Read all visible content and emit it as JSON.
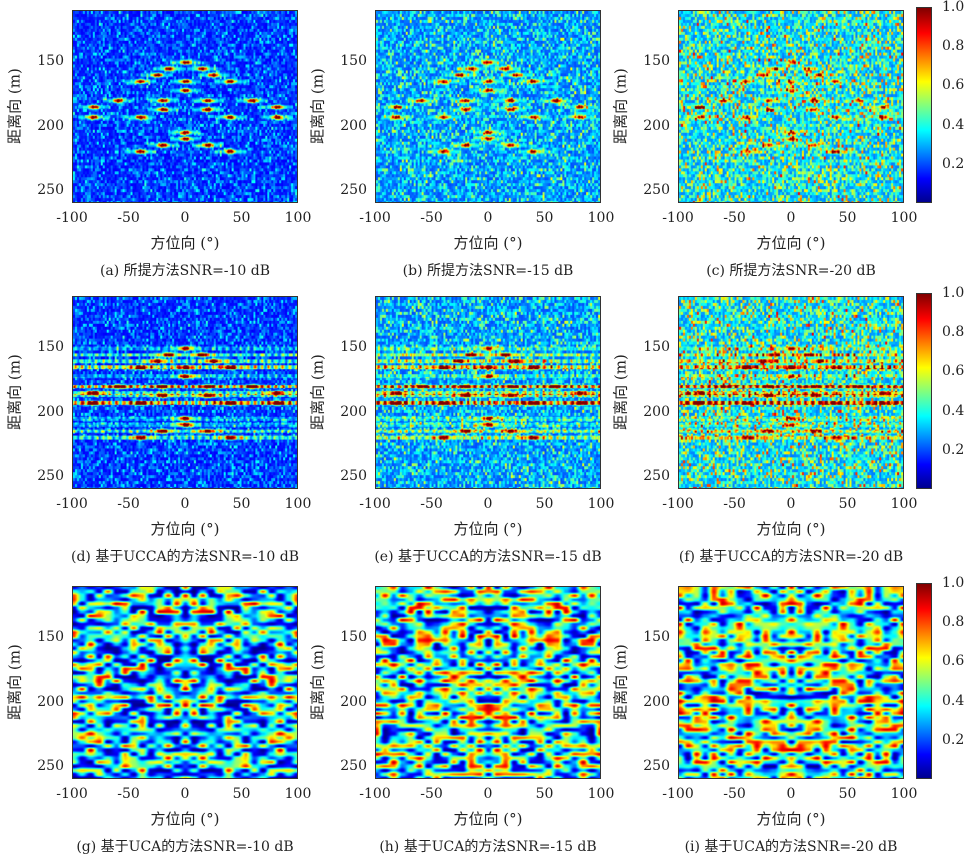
{
  "colors": {
    "colormap": "jet"
  },
  "chart_data": [
    {
      "id": "a",
      "type": "heatmap",
      "caption": "(a) 所提方法SNR=-10 dB",
      "method": "proposed",
      "snr_db": -10,
      "xlabel": "方位向 (°)",
      "ylabel": "距离向 (m)",
      "xlim": [
        -100,
        100
      ],
      "ylim": [
        110,
        260
      ],
      "xticks": [
        "-100",
        "-50",
        "0",
        "50",
        "100"
      ],
      "yticks": [
        "150",
        "200",
        "250"
      ],
      "colorbar": false
    },
    {
      "id": "b",
      "type": "heatmap",
      "caption": "(b) 所提方法SNR=-15 dB",
      "method": "proposed",
      "snr_db": -15,
      "xlabel": "方位向 (°)",
      "ylabel": "距离向 (m)",
      "xlim": [
        -100,
        100
      ],
      "ylim": [
        110,
        260
      ],
      "xticks": [
        "-100",
        "-50",
        "0",
        "50",
        "100"
      ],
      "yticks": [
        "150",
        "200",
        "250"
      ],
      "colorbar": false
    },
    {
      "id": "c",
      "type": "heatmap",
      "caption": "(c) 所提方法SNR=-20 dB",
      "method": "proposed",
      "snr_db": -20,
      "xlabel": "方位向 (°)",
      "ylabel": "距离向 (m)",
      "xlim": [
        -100,
        100
      ],
      "ylim": [
        110,
        260
      ],
      "xticks": [
        "-100",
        "-50",
        "0",
        "50",
        "100"
      ],
      "yticks": [
        "150",
        "200",
        "250"
      ],
      "colorbar": true
    },
    {
      "id": "d",
      "type": "heatmap",
      "caption": "(d) 基于UCCA的方法SNR=-10 dB",
      "method": "ucca",
      "snr_db": -10,
      "xlabel": "方位向 (°)",
      "ylabel": "距离向 (m)",
      "xlim": [
        -100,
        100
      ],
      "ylim": [
        110,
        260
      ],
      "xticks": [
        "-100",
        "-50",
        "0",
        "50",
        "100"
      ],
      "yticks": [
        "150",
        "200",
        "250"
      ],
      "colorbar": false
    },
    {
      "id": "e",
      "type": "heatmap",
      "caption": "(e) 基于UCCA的方法SNR=-15 dB",
      "method": "ucca",
      "snr_db": -15,
      "xlabel": "方位向 (°)",
      "ylabel": "距离向 (m)",
      "xlim": [
        -100,
        100
      ],
      "ylim": [
        110,
        260
      ],
      "xticks": [
        "-100",
        "-50",
        "0",
        "50",
        "100"
      ],
      "yticks": [
        "150",
        "200",
        "250"
      ],
      "colorbar": false
    },
    {
      "id": "f",
      "type": "heatmap",
      "caption": "(f) 基于UCCA的方法SNR=-20 dB",
      "method": "ucca",
      "snr_db": -20,
      "xlabel": "方位向 (°)",
      "ylabel": "距离向 (m)",
      "xlim": [
        -100,
        100
      ],
      "ylim": [
        110,
        260
      ],
      "xticks": [
        "-100",
        "-50",
        "0",
        "50",
        "100"
      ],
      "yticks": [
        "150",
        "200",
        "250"
      ],
      "colorbar": true
    },
    {
      "id": "g",
      "type": "heatmap",
      "caption": "(g) 基于UCA的方法SNR=-10 dB",
      "method": "uca",
      "snr_db": -10,
      "xlabel": "方位向 (°)",
      "ylabel": "距离向 (m)",
      "xlim": [
        -100,
        100
      ],
      "ylim": [
        110,
        260
      ],
      "xticks": [
        "-100",
        "-50",
        "0",
        "50",
        "100"
      ],
      "yticks": [
        "150",
        "200",
        "250"
      ],
      "colorbar": false
    },
    {
      "id": "h",
      "type": "heatmap",
      "caption": "(h) 基于UCA的方法SNR=-15 dB",
      "method": "uca",
      "snr_db": -15,
      "xlabel": "方位向 (°)",
      "ylabel": "距离向 (m)",
      "xlim": [
        -100,
        100
      ],
      "ylim": [
        110,
        260
      ],
      "xticks": [
        "-100",
        "-50",
        "0",
        "50",
        "100"
      ],
      "yticks": [
        "150",
        "200",
        "250"
      ],
      "colorbar": false
    },
    {
      "id": "i",
      "type": "heatmap",
      "caption": "(i) 基于UCA的方法SNR=-20 dB",
      "method": "uca",
      "snr_db": -20,
      "xlabel": "方位向 (°)",
      "ylabel": "距离向 (m)",
      "xlim": [
        -100,
        100
      ],
      "ylim": [
        110,
        260
      ],
      "xticks": [
        "-100",
        "-50",
        "0",
        "50",
        "100"
      ],
      "yticks": [
        "150",
        "200",
        "250"
      ],
      "colorbar": true
    }
  ],
  "colorbar": {
    "clim": [
      0,
      1
    ],
    "ticks": [
      "1.0",
      "0.8",
      "0.6",
      "0.4",
      "0.2"
    ]
  },
  "targets": [
    [
      0,
      150
    ],
    [
      -15,
      155
    ],
    [
      15,
      155
    ],
    [
      -25,
      160
    ],
    [
      25,
      160
    ],
    [
      -40,
      165
    ],
    [
      0,
      165
    ],
    [
      40,
      165
    ],
    [
      0,
      172
    ],
    [
      -60,
      180
    ],
    [
      -20,
      180
    ],
    [
      20,
      180
    ],
    [
      60,
      180
    ],
    [
      -20,
      187
    ],
    [
      20,
      187
    ],
    [
      -40,
      193
    ],
    [
      40,
      193
    ],
    [
      -82,
      185
    ],
    [
      82,
      185
    ],
    [
      -82,
      193
    ],
    [
      82,
      193
    ],
    [
      0,
      205
    ],
    [
      0,
      210
    ],
    [
      -20,
      215
    ],
    [
      20,
      215
    ],
    [
      -40,
      220
    ],
    [
      40,
      220
    ]
  ]
}
